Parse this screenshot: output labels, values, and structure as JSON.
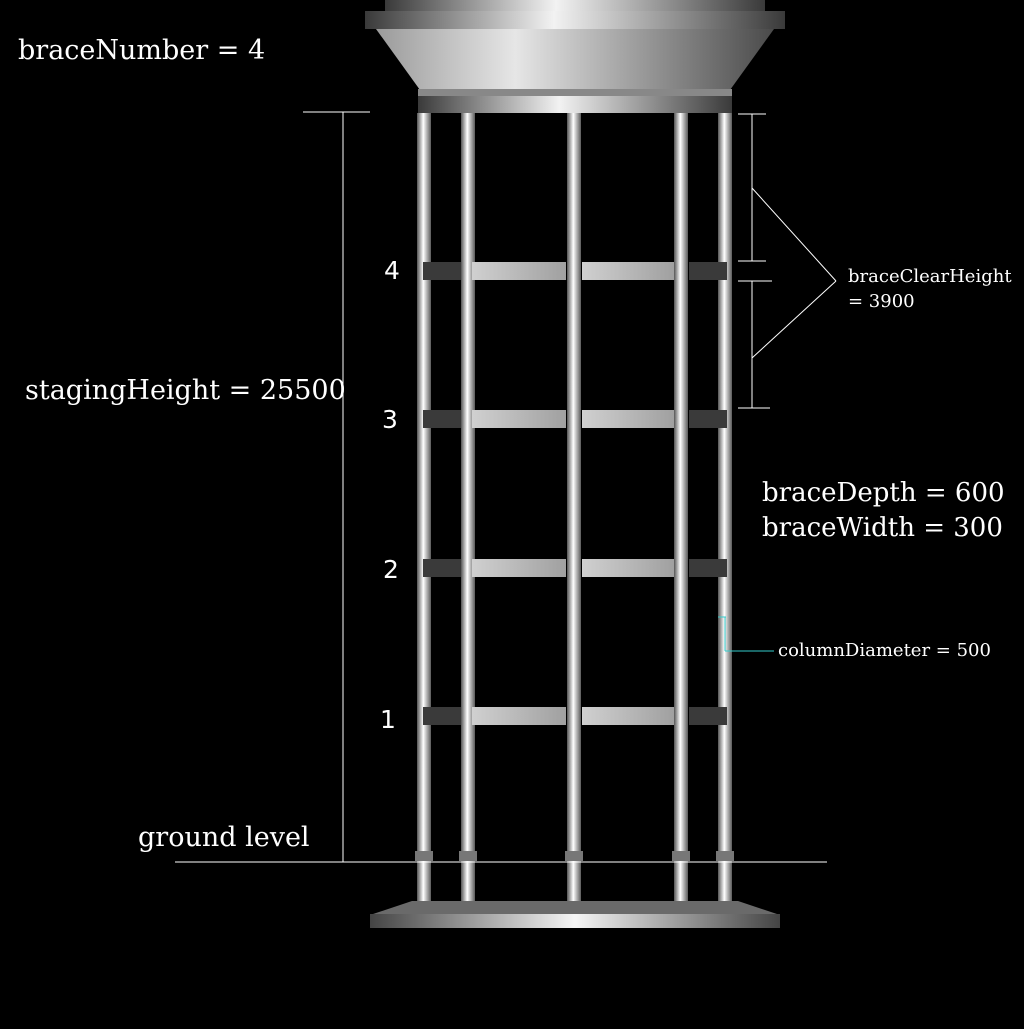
{
  "labels": {
    "brace_number": "braceNumber = 4",
    "staging_height": "stagingHeight = 25500",
    "ground_level": "ground level",
    "brace_depth": "braceDepth = 600",
    "brace_width": "braceWidth = 300",
    "brace_clear_height_line1": "braceClearHeight",
    "brace_clear_height_line2": "= 3900",
    "column_diameter": "columnDiameter = 500"
  },
  "brace_levels": [
    "4",
    "3",
    "2",
    "1"
  ],
  "colors": {
    "background": "#000000",
    "dimension_lines": "#ffffff",
    "column_diameter_leader": "#33cccc",
    "brace_dark": "#3a3a3a",
    "brace_light": "#c8c8c8"
  }
}
